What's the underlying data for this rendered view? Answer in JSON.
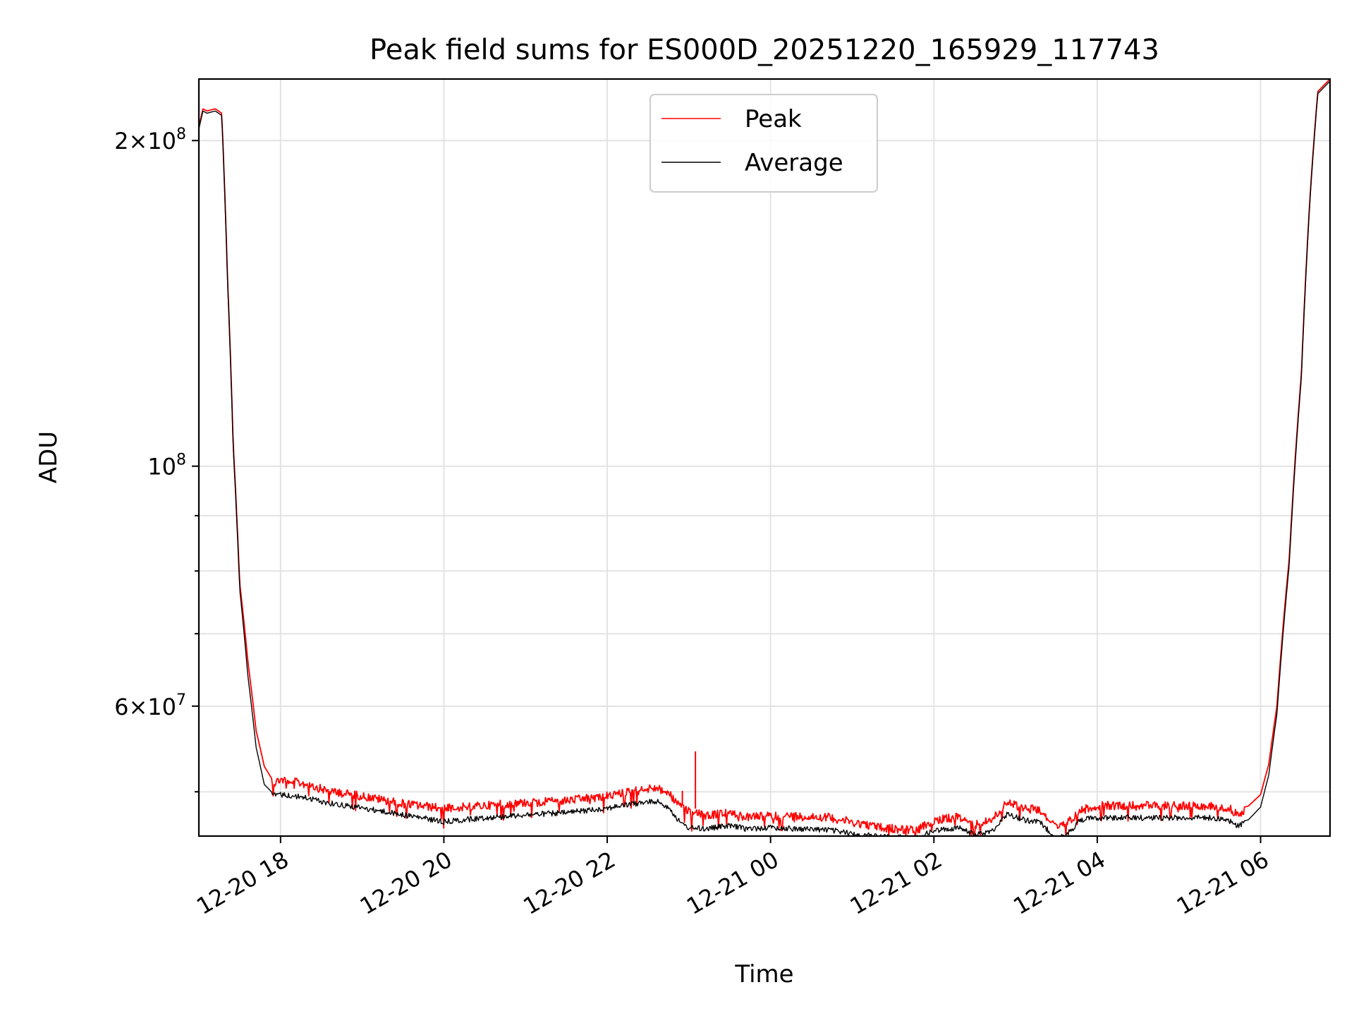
{
  "chart_data": {
    "type": "line",
    "title": "Peak field sums for ES000D_20251220_165929_117743",
    "xlabel": "Time",
    "ylabel": "ADU",
    "y_scale": "log",
    "xlim": [
      17.0,
      30.85
    ],
    "ylim": [
      45500000,
      228000000
    ],
    "grid": true,
    "legend_position": "upper-center",
    "x_ticks": [
      {
        "value": 18,
        "label": "12-20 18"
      },
      {
        "value": 20,
        "label": "12-20 20"
      },
      {
        "value": 22,
        "label": "12-20 22"
      },
      {
        "value": 24,
        "label": "12-21 00"
      },
      {
        "value": 26,
        "label": "12-21 02"
      },
      {
        "value": 28,
        "label": "12-21 04"
      },
      {
        "value": 30,
        "label": "12-21 06"
      }
    ],
    "y_major_ticks": [
      {
        "value": 60000000,
        "mantissa": "6",
        "base": "10",
        "exp": "7"
      },
      {
        "value": 100000000,
        "mantissa": "",
        "base": "10",
        "exp": "8"
      },
      {
        "value": 200000000,
        "mantissa": "2",
        "base": "10",
        "exp": "8"
      }
    ],
    "y_minor_ticks": [
      50000000,
      70000000,
      80000000,
      90000000
    ],
    "series": [
      {
        "name": "Peak",
        "color": "#ff0000",
        "x": [
          17.0,
          17.05,
          17.1,
          17.2,
          17.28,
          17.35,
          17.42,
          17.5,
          17.6,
          17.7,
          17.8,
          17.9,
          18.0,
          18.3,
          18.6,
          19.0,
          19.5,
          20.0,
          20.5,
          21.0,
          21.5,
          22.0,
          22.3,
          22.6,
          22.75,
          22.9,
          23.0,
          23.2,
          23.5,
          23.7,
          24.0,
          24.3,
          24.7,
          25.0,
          25.4,
          25.8,
          26.0,
          26.3,
          26.5,
          26.7,
          26.9,
          27.1,
          27.3,
          27.5,
          27.6,
          27.8,
          28.0,
          28.3,
          28.6,
          29.0,
          29.4,
          29.6,
          29.7,
          29.85,
          30.0,
          30.1,
          30.2,
          30.35,
          30.5,
          30.6,
          30.7,
          30.85
        ],
        "values": [
          206000000,
          214000000,
          213000000,
          214000000,
          212000000,
          150000000,
          105000000,
          78000000,
          66000000,
          57000000,
          52800000,
          51300000,
          51800000,
          51300000,
          50500000,
          50000000,
          49200000,
          48700000,
          49000000,
          49300000,
          49500000,
          50000000,
          50500000,
          50900000,
          50300000,
          48800000,
          48400000,
          48000000,
          48200000,
          47800000,
          47900000,
          47900000,
          47800000,
          47300000,
          46700000,
          46500000,
          47500000,
          47800000,
          47000000,
          47500000,
          49300000,
          48800000,
          48500000,
          46700000,
          47000000,
          48500000,
          49000000,
          49000000,
          49000000,
          49000000,
          49000000,
          48800000,
          48200000,
          48500000,
          49700000,
          53000000,
          60000000,
          82000000,
          122000000,
          175000000,
          222000000,
          228000000
        ]
      },
      {
        "name": "Average",
        "color": "#000000",
        "x": [
          17.0,
          17.05,
          17.1,
          17.2,
          17.28,
          17.35,
          17.42,
          17.5,
          17.6,
          17.7,
          17.8,
          17.9,
          18.0,
          18.3,
          18.6,
          19.0,
          19.5,
          20.0,
          20.5,
          21.0,
          21.5,
          22.0,
          22.3,
          22.6,
          22.75,
          22.9,
          23.0,
          23.2,
          23.5,
          23.7,
          24.0,
          24.3,
          24.7,
          25.0,
          25.4,
          25.8,
          26.0,
          26.3,
          26.5,
          26.7,
          26.9,
          27.1,
          27.3,
          27.5,
          27.6,
          27.8,
          28.0,
          28.3,
          28.6,
          29.0,
          29.4,
          29.6,
          29.7,
          29.85,
          30.0,
          30.1,
          30.2,
          30.35,
          30.5,
          30.6,
          30.7,
          30.85
        ],
        "values": [
          205000000,
          213000000,
          212000000,
          213000000,
          211000000,
          149000000,
          104000000,
          77000000,
          64000000,
          55000000,
          50800000,
          49900000,
          50000000,
          49700000,
          49100000,
          48600000,
          47900000,
          47200000,
          47600000,
          47900000,
          48100000,
          48600000,
          49000000,
          49300000,
          48700000,
          47000000,
          46600000,
          46500000,
          46800000,
          46500000,
          46600000,
          46500000,
          46400000,
          46000000,
          45700000,
          45600000,
          46300000,
          46600000,
          45900000,
          46200000,
          48000000,
          47400000,
          47100000,
          45600000,
          45700000,
          47400000,
          47600000,
          47600000,
          47600000,
          47600000,
          47600000,
          47400000,
          46800000,
          47100000,
          48400000,
          51800000,
          59000000,
          81000000,
          121000000,
          174000000,
          221000000,
          227000000
        ]
      }
    ],
    "annotations": [
      {
        "x": 23.08,
        "value": 54500000,
        "series": "Peak",
        "note": "spike"
      },
      {
        "x": 22.92,
        "value": 50100000,
        "series": "Peak",
        "note": "spike"
      }
    ]
  },
  "legend": {
    "items": [
      {
        "label": "Peak",
        "color": "#ff0000"
      },
      {
        "label": "Average",
        "color": "#000000"
      }
    ]
  }
}
